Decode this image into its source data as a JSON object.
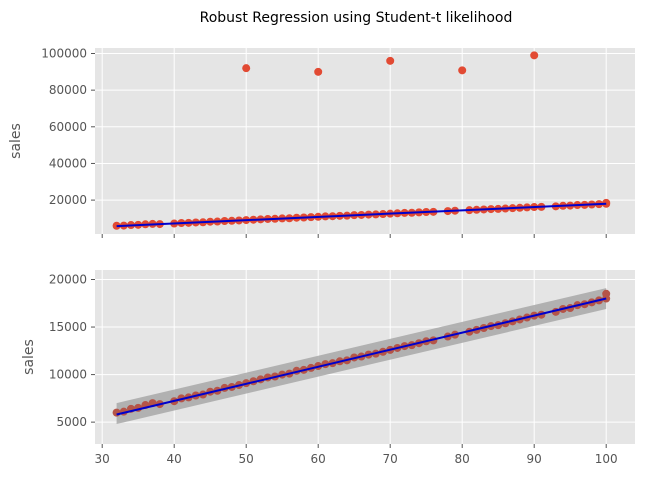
{
  "figure": {
    "suptitle": "Robust Regression using Student-t likelihood",
    "colors": {
      "panel_bg": "#E5E5E5",
      "grid": "#FFFFFF",
      "points": "#E24A33",
      "points_bottom": "#B55448",
      "fit_line": "#0000CC",
      "band": "#A8A8A8"
    }
  },
  "chart_data": [
    {
      "type": "scatter",
      "title": "",
      "xlabel": "",
      "ylabel": "sales",
      "xlim": [
        29,
        104
      ],
      "ylim": [
        1500,
        103000
      ],
      "xticks": [
        30,
        40,
        50,
        60,
        70,
        80,
        90,
        100
      ],
      "show_xtick_labels": false,
      "yticks": [
        20000,
        40000,
        60000,
        80000,
        100000
      ],
      "ytick_labels": [
        "20000",
        "40000",
        "60000",
        "80000",
        "100000"
      ],
      "grid": true,
      "series": [
        {
          "kind": "points",
          "x": [
            32,
            33,
            34,
            35,
            36,
            37,
            38,
            40,
            41,
            42,
            43,
            44,
            45,
            46,
            47,
            48,
            49,
            50,
            51,
            52,
            53,
            54,
            55,
            56,
            57,
            58,
            59,
            60,
            61,
            62,
            63,
            64,
            65,
            66,
            67,
            68,
            69,
            70,
            71,
            72,
            73,
            74,
            75,
            76,
            78,
            79,
            81,
            82,
            83,
            84,
            85,
            86,
            87,
            88,
            89,
            90,
            91,
            93,
            94,
            95,
            96,
            97,
            98,
            99,
            100,
            100
          ],
          "y": [
            6000,
            6100,
            6400,
            6500,
            6800,
            7000,
            6900,
            7200,
            7500,
            7600,
            7800,
            7900,
            8200,
            8300,
            8600,
            8700,
            8900,
            9100,
            9300,
            9500,
            9700,
            9800,
            10000,
            10100,
            10400,
            10500,
            10700,
            10900,
            11100,
            11200,
            11400,
            11500,
            11800,
            11900,
            12100,
            12200,
            12400,
            12600,
            12800,
            13000,
            13100,
            13300,
            13500,
            13600,
            14000,
            14200,
            14500,
            14700,
            14900,
            15100,
            15200,
            15400,
            15600,
            15800,
            16000,
            16200,
            16300,
            16600,
            16900,
            17000,
            17300,
            17400,
            17600,
            17800,
            18000,
            18500
          ]
        },
        {
          "kind": "points",
          "x": [
            50,
            60,
            70,
            80,
            90
          ],
          "y": [
            92000,
            90000,
            96000,
            90800,
            99000
          ]
        },
        {
          "kind": "line",
          "x": [
            32,
            100
          ],
          "y": [
            5800,
            18000
          ]
        }
      ]
    },
    {
      "type": "scatter",
      "title": "",
      "xlabel": "",
      "ylabel": "sales",
      "xlim": [
        29,
        104
      ],
      "ylim": [
        2700,
        21000
      ],
      "xticks": [
        30,
        40,
        50,
        60,
        70,
        80,
        90,
        100
      ],
      "xtick_labels": [
        "30",
        "40",
        "50",
        "60",
        "70",
        "80",
        "90",
        "100"
      ],
      "yticks": [
        5000,
        10000,
        15000,
        20000
      ],
      "ytick_labels": [
        "5000",
        "10000",
        "15000",
        "20000"
      ],
      "grid": true,
      "series": [
        {
          "kind": "band",
          "x": [
            32,
            100
          ],
          "lower": [
            4800,
            16900
          ],
          "upper": [
            7000,
            19100
          ]
        },
        {
          "kind": "points",
          "x": [
            32,
            33,
            34,
            35,
            36,
            37,
            38,
            40,
            41,
            42,
            43,
            44,
            45,
            46,
            47,
            48,
            49,
            50,
            51,
            52,
            53,
            54,
            55,
            56,
            57,
            58,
            59,
            60,
            61,
            62,
            63,
            64,
            65,
            66,
            67,
            68,
            69,
            70,
            71,
            72,
            73,
            74,
            75,
            76,
            78,
            79,
            81,
            82,
            83,
            84,
            85,
            86,
            87,
            88,
            89,
            90,
            91,
            93,
            94,
            95,
            96,
            97,
            98,
            99,
            100,
            100
          ],
          "y": [
            6000,
            6100,
            6400,
            6500,
            6800,
            7000,
            6900,
            7200,
            7500,
            7600,
            7800,
            7900,
            8200,
            8300,
            8600,
            8700,
            8900,
            9100,
            9300,
            9500,
            9700,
            9800,
            10000,
            10100,
            10400,
            10500,
            10700,
            10900,
            11100,
            11200,
            11400,
            11500,
            11800,
            11900,
            12100,
            12200,
            12400,
            12600,
            12800,
            13000,
            13100,
            13300,
            13500,
            13600,
            14000,
            14200,
            14500,
            14700,
            14900,
            15100,
            15200,
            15400,
            15600,
            15800,
            16000,
            16200,
            16300,
            16600,
            16900,
            17000,
            17300,
            17400,
            17600,
            17800,
            18000,
            18500
          ]
        },
        {
          "kind": "line",
          "x": [
            32,
            100
          ],
          "y": [
            5800,
            18000
          ]
        }
      ]
    }
  ]
}
